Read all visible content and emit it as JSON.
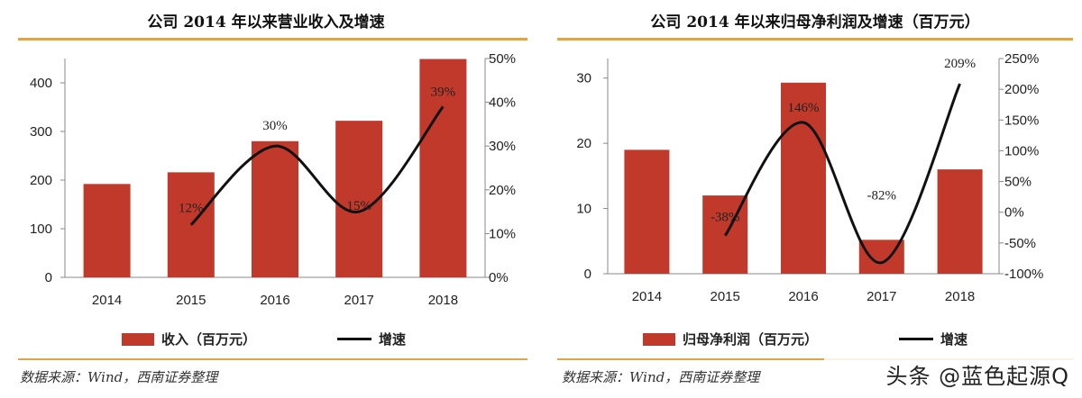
{
  "watermark": "头条 @蓝色起源Q",
  "chart_data": [
    {
      "type": "bar",
      "title": "公司 2014 年以来营业收入及增速",
      "categories": [
        "2014",
        "2015",
        "2016",
        "2017",
        "2018"
      ],
      "series": [
        {
          "name": "收入（百万元）",
          "type": "bar",
          "axis": "left",
          "values": [
            192,
            216,
            280,
            322,
            449
          ]
        },
        {
          "name": "增速",
          "type": "line",
          "axis": "right",
          "values": [
            null,
            12,
            30,
            15,
            39
          ]
        }
      ],
      "line_labels": [
        "",
        "12%",
        "30%",
        "15%",
        "39%"
      ],
      "ylim_left": [
        0,
        450
      ],
      "yticks_left": [
        "0",
        "100",
        "200",
        "300",
        "400"
      ],
      "ylim_right": [
        0,
        50
      ],
      "yticks_right": [
        "0%",
        "10%",
        "20%",
        "30%",
        "40%",
        "50%"
      ],
      "legend": {
        "bar": "收入（百万元）",
        "line": "增速"
      },
      "source": "数据来源：Wind，西南证券整理"
    },
    {
      "type": "bar",
      "title": "公司 2014 年以来归母净利润及增速（百万元）",
      "categories": [
        "2014",
        "2015",
        "2016",
        "2017",
        "2018"
      ],
      "series": [
        {
          "name": "归母净利润（百万元）",
          "type": "bar",
          "axis": "left",
          "values": [
            19,
            12,
            29.3,
            5.2,
            16
          ]
        },
        {
          "name": "增速",
          "type": "line",
          "axis": "right",
          "values": [
            null,
            -38,
            146,
            -82,
            209
          ]
        }
      ],
      "line_labels": [
        "",
        "-38%",
        "146%",
        "-82%",
        "209%"
      ],
      "ylim_left": [
        0,
        33
      ],
      "yticks_left": [
        "0",
        "10",
        "20",
        "30"
      ],
      "ylim_right": [
        -100,
        250
      ],
      "yticks_right": [
        "-100%",
        "-50%",
        "0%",
        "50%",
        "100%",
        "150%",
        "200%",
        "250%"
      ],
      "legend": {
        "bar": "归母净利润（百万元）",
        "line": "增速"
      },
      "source": "数据来源：Wind，西南证券整理"
    }
  ]
}
